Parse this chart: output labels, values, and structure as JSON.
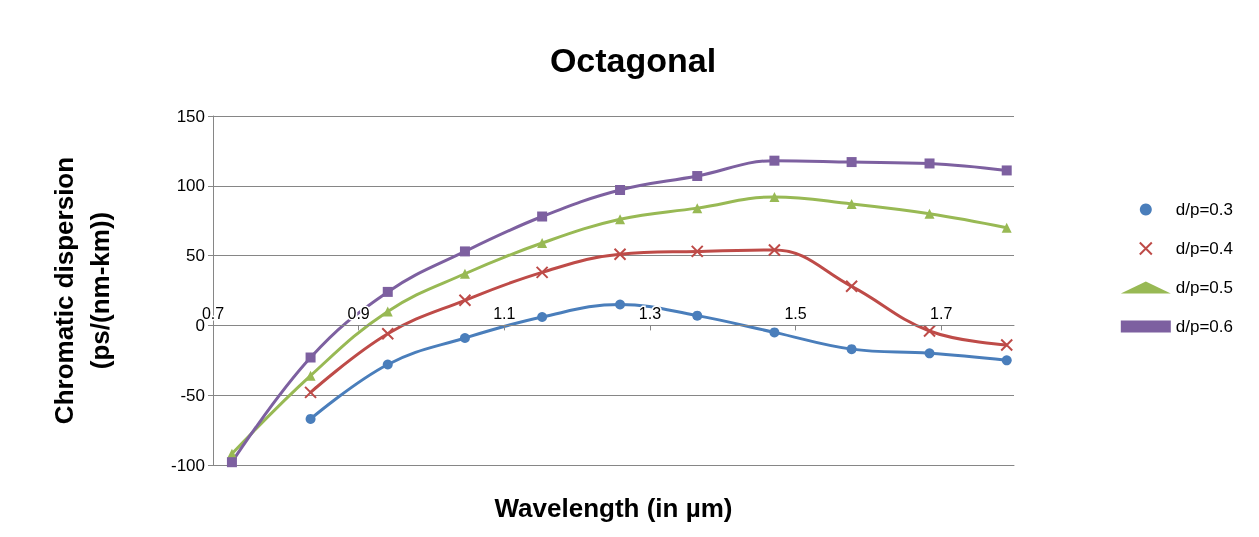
{
  "chart_data": {
    "type": "line",
    "title": "Octagonal",
    "xlabel": "Wavelength (in µm)",
    "ylabel": "Chromatic dispersion\n(ps/(nm-km))",
    "xlim": [
      0.7,
      1.8
    ],
    "xticks": [
      0.7,
      0.9,
      1.1,
      1.3,
      1.5,
      1.7
    ],
    "ylim": [
      -100,
      150
    ],
    "yticks": [
      -100,
      -50,
      0,
      50,
      100,
      150
    ],
    "x": [
      0.726,
      0.834,
      0.94,
      1.046,
      1.152,
      1.259,
      1.365,
      1.471,
      1.577,
      1.684,
      1.79
    ],
    "grid": "y",
    "legend": "right",
    "line_style": "solid",
    "series": [
      {
        "name": "d/p=0.3",
        "color": "#4a7ebb",
        "marker": "circle",
        "values": [
          null,
          -67,
          -28,
          -9,
          6,
          15,
          7,
          -5,
          -17,
          -20,
          -25
        ]
      },
      {
        "name": "d/p=0.4",
        "color": "#be4b48",
        "marker": "cross",
        "values": [
          null,
          -48,
          -6,
          18,
          38,
          51,
          53,
          54,
          28,
          -4,
          -14
        ]
      },
      {
        "name": "d/p=0.5",
        "color": "#98b954",
        "marker": "triangle",
        "values": [
          -92,
          -36,
          10,
          37,
          59,
          76,
          84,
          92,
          87,
          80,
          70
        ]
      },
      {
        "name": "d/p=0.6",
        "color": "#7d60a0",
        "marker": "square",
        "values": [
          -98,
          -23,
          24,
          53,
          78,
          97,
          107,
          118,
          117,
          116,
          111
        ]
      }
    ]
  }
}
